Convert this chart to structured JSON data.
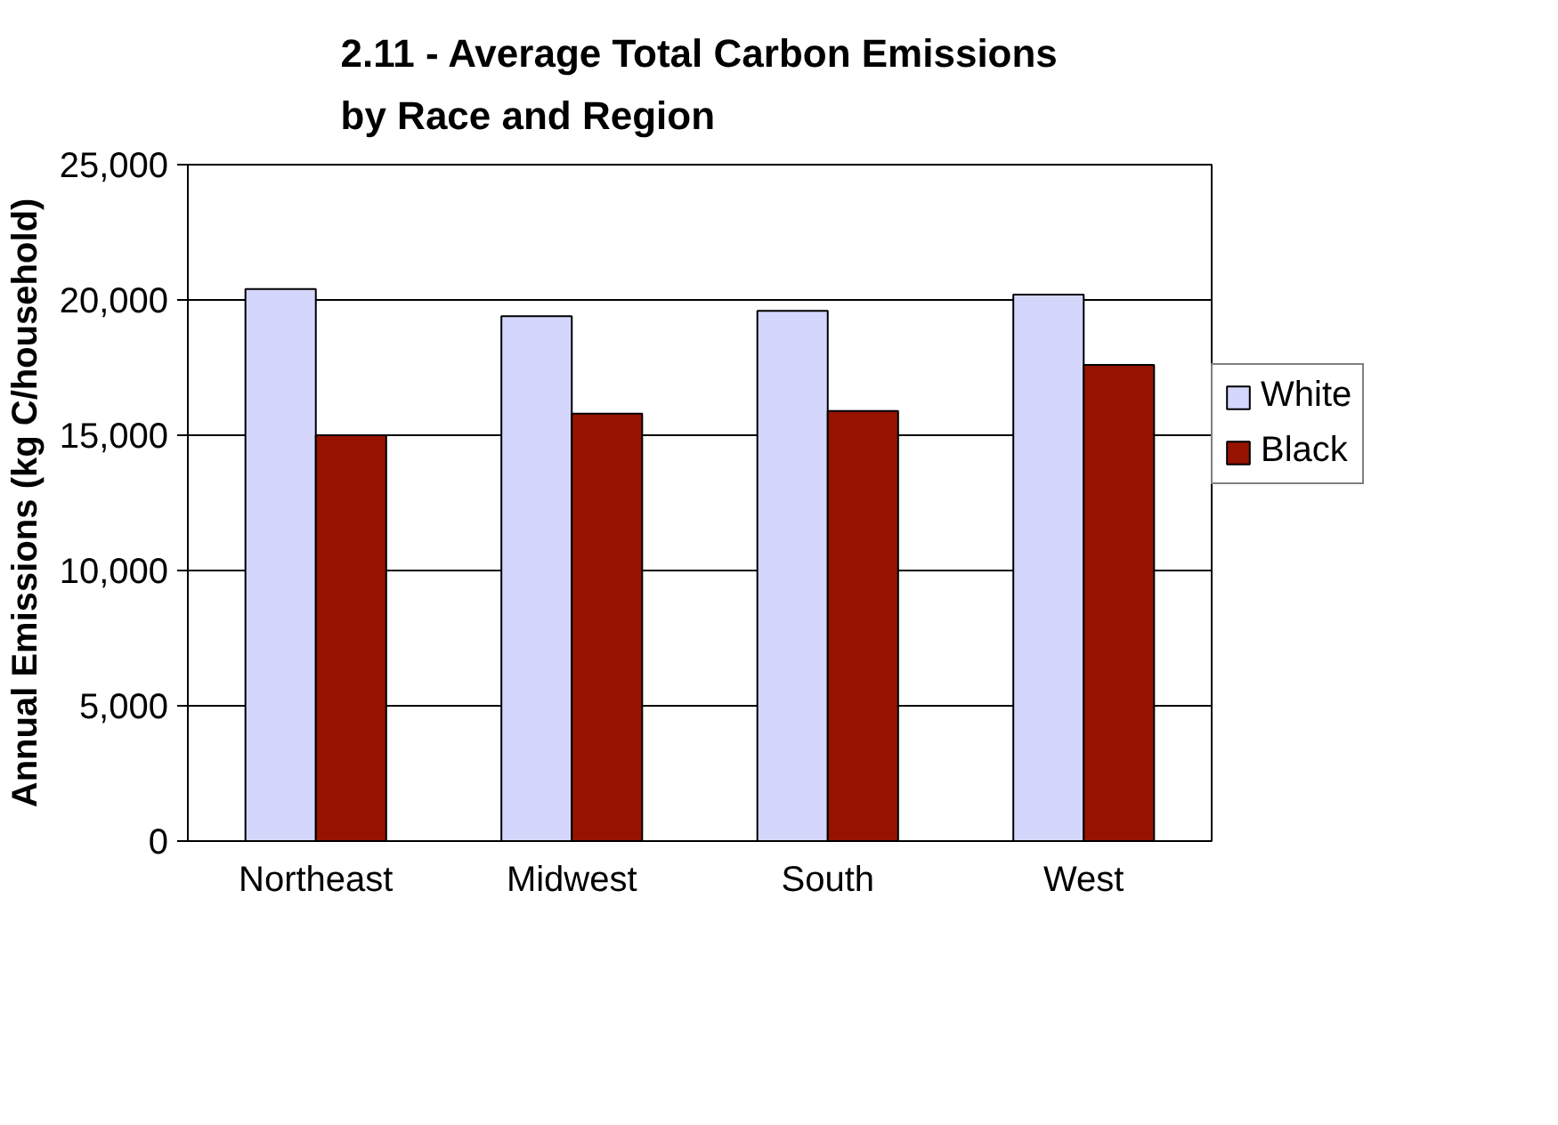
{
  "chart_data": {
    "type": "bar",
    "title": "2.11 - Average Total Carbon Emissions by Race and Region",
    "ylabel": "Annual Emissions (kg C/household)",
    "categories": [
      "Northeast",
      "Midwest",
      "South",
      "West"
    ],
    "series": [
      {
        "name": "White",
        "color": "#d4d6fb",
        "values": [
          20400,
          19400,
          19600,
          20200
        ]
      },
      {
        "name": "Black",
        "color": "#961300",
        "values": [
          15000,
          15800,
          15900,
          17600
        ]
      }
    ],
    "ylim": [
      0,
      25000
    ],
    "yticks": [
      {
        "value": 0,
        "label": "0"
      },
      {
        "value": 5000,
        "label": "5,000"
      },
      {
        "value": 10000,
        "label": "10,000"
      },
      {
        "value": 15000,
        "label": "15,000"
      },
      {
        "value": 20000,
        "label": "20,000"
      },
      {
        "value": 25000,
        "label": "25,000"
      }
    ],
    "grid": "y",
    "legend": "right"
  }
}
